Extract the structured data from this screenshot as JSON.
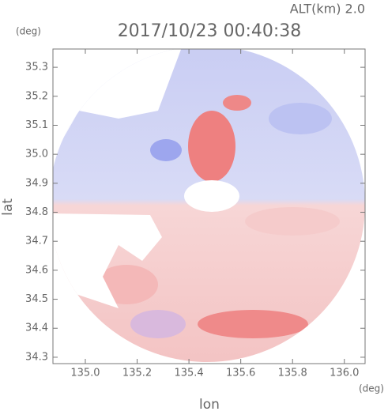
{
  "chart_data": {
    "type": "map",
    "title": "2017/10/23 00:40:38",
    "subtitle": "ALT(km) 2.0",
    "xlabel": "lon",
    "ylabel": "lat",
    "xunit": "(deg)",
    "yunit": "(deg)",
    "xlim": [
      134.875,
      136.08
    ],
    "ylim": [
      34.278,
      35.363
    ],
    "xticks": [
      {
        "value": 135,
        "label": "135.0"
      },
      135.2,
      135.4,
      135.6,
      135.8,
      {
        "value": 136,
        "label": "136.0"
      }
    ],
    "yticks": [
      34.3,
      34.4,
      34.5,
      34.6,
      34.7,
      34.8,
      34.9,
      {
        "value": 35,
        "label": "35.0"
      },
      35.1,
      35.2,
      35.3
    ]
  }
}
